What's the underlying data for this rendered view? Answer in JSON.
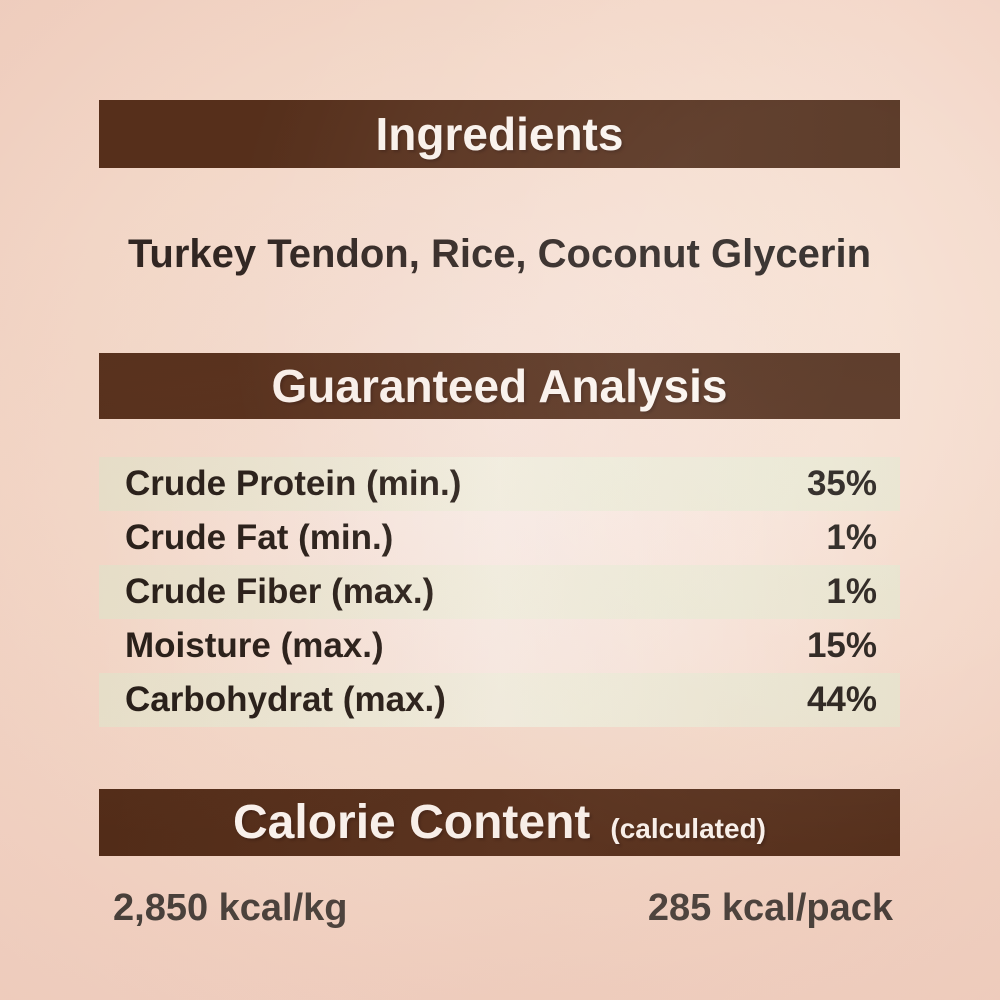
{
  "label": {
    "colors": {
      "header_bar": "#47220e",
      "header_text": "#fdfaf6",
      "background_center": "#f9e9e1",
      "background_edge": "#eeccbd",
      "table_stripe": "#e8e5cf",
      "body_text": "#1d1715",
      "kcal_text": "#3b3733"
    },
    "sections": {
      "ingredients": {
        "header": "Ingredients",
        "text": "Turkey Tendon, Rice, Coconut Glycerin"
      },
      "guaranteed_analysis": {
        "header": "Guaranteed Analysis",
        "rows": [
          {
            "label": "Crude Protein (min.)",
            "value": "35%"
          },
          {
            "label": "Crude Fat (min.)",
            "value": "1%"
          },
          {
            "label": "Crude Fiber (max.)",
            "value": "1%"
          },
          {
            "label": "Moisture (max.)",
            "value": "15%"
          },
          {
            "label": "Carbohydrat (max.)",
            "value": "44%"
          }
        ]
      },
      "calorie_content": {
        "header": "Calorie Content",
        "header_note": "(calculated)",
        "per_kg": "2,850 kcal/kg",
        "per_pack": "285 kcal/pack"
      }
    }
  }
}
